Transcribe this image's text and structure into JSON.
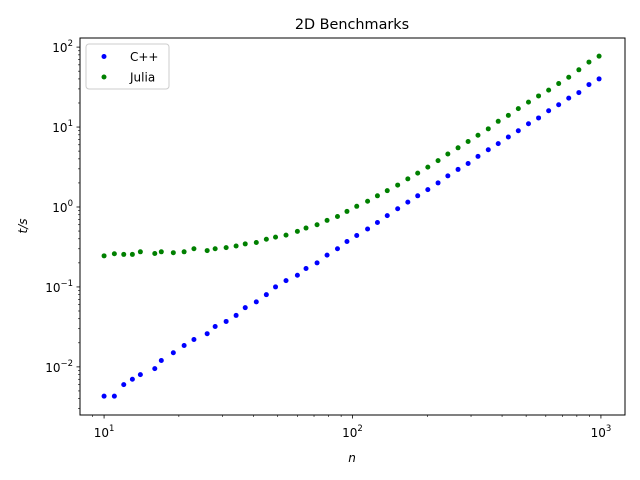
{
  "chart_data": {
    "type": "scatter",
    "title": "2D Benchmarks",
    "xlabel": "n",
    "ylabel": "t/s",
    "xscale": "log",
    "yscale": "log",
    "xlim": [
      8,
      1250
    ],
    "ylim": [
      0.0025,
      130
    ],
    "grid": false,
    "legend_position": "upper-left",
    "x_ticks": [
      {
        "base": "10",
        "exp": "1",
        "value": 10
      },
      {
        "base": "10",
        "exp": "2",
        "value": 100
      },
      {
        "base": "10",
        "exp": "3",
        "value": 1000
      }
    ],
    "y_ticks": [
      {
        "base": "10",
        "exp": "−2",
        "value": 0.01
      },
      {
        "base": "10",
        "exp": "−1",
        "value": 0.1
      },
      {
        "base": "10",
        "exp": "0",
        "value": 1
      },
      {
        "base": "10",
        "exp": "1",
        "value": 10
      },
      {
        "base": "10",
        "exp": "2",
        "value": 100
      }
    ],
    "series": [
      {
        "name": "C++",
        "color": "#0000ff",
        "points": [
          [
            10,
            0.0043
          ],
          [
            11,
            0.0043
          ],
          [
            12,
            0.006
          ],
          [
            13,
            0.007
          ],
          [
            14,
            0.008
          ],
          [
            16,
            0.0095
          ],
          [
            17,
            0.012
          ],
          [
            19,
            0.015
          ],
          [
            21,
            0.0185
          ],
          [
            23,
            0.022
          ],
          [
            26,
            0.026
          ],
          [
            28,
            0.032
          ],
          [
            31,
            0.037
          ],
          [
            34,
            0.044
          ],
          [
            37,
            0.055
          ],
          [
            41,
            0.065
          ],
          [
            45,
            0.08
          ],
          [
            49,
            0.1
          ],
          [
            54,
            0.12
          ],
          [
            60,
            0.14
          ],
          [
            65,
            0.17
          ],
          [
            72,
            0.2
          ],
          [
            79,
            0.25
          ],
          [
            87,
            0.3
          ],
          [
            95,
            0.37
          ],
          [
            104,
            0.44
          ],
          [
            115,
            0.53
          ],
          [
            126,
            0.64
          ],
          [
            138,
            0.78
          ],
          [
            152,
            0.95
          ],
          [
            167,
            1.15
          ],
          [
            183,
            1.38
          ],
          [
            201,
            1.65
          ],
          [
            221,
            2.0
          ],
          [
            242,
            2.45
          ],
          [
            266,
            2.95
          ],
          [
            292,
            3.5
          ],
          [
            320,
            4.3
          ],
          [
            352,
            5.2
          ],
          [
            386,
            6.2
          ],
          [
            424,
            7.5
          ],
          [
            465,
            9.0
          ],
          [
            511,
            11.0
          ],
          [
            561,
            13.0
          ],
          [
            616,
            16.0
          ],
          [
            676,
            19.0
          ],
          [
            742,
            23.0
          ],
          [
            815,
            27.0
          ],
          [
            895,
            34.0
          ],
          [
            983,
            40.0
          ]
        ]
      },
      {
        "name": "Julia",
        "color": "#008000",
        "points": [
          [
            10,
            0.245
          ],
          [
            11,
            0.26
          ],
          [
            12,
            0.255
          ],
          [
            13,
            0.255
          ],
          [
            14,
            0.275
          ],
          [
            16,
            0.262
          ],
          [
            17,
            0.275
          ],
          [
            19,
            0.268
          ],
          [
            21,
            0.275
          ],
          [
            23,
            0.3
          ],
          [
            26,
            0.285
          ],
          [
            28,
            0.3
          ],
          [
            31,
            0.31
          ],
          [
            34,
            0.325
          ],
          [
            37,
            0.345
          ],
          [
            41,
            0.36
          ],
          [
            45,
            0.395
          ],
          [
            49,
            0.42
          ],
          [
            54,
            0.445
          ],
          [
            60,
            0.495
          ],
          [
            65,
            0.545
          ],
          [
            72,
            0.6
          ],
          [
            79,
            0.68
          ],
          [
            87,
            0.76
          ],
          [
            95,
            0.88
          ],
          [
            104,
            1.02
          ],
          [
            115,
            1.18
          ],
          [
            126,
            1.38
          ],
          [
            138,
            1.6
          ],
          [
            152,
            1.88
          ],
          [
            167,
            2.25
          ],
          [
            183,
            2.65
          ],
          [
            201,
            3.15
          ],
          [
            221,
            3.8
          ],
          [
            242,
            4.6
          ],
          [
            266,
            5.5
          ],
          [
            292,
            6.6
          ],
          [
            320,
            7.9
          ],
          [
            352,
            9.5
          ],
          [
            386,
            11.8
          ],
          [
            424,
            14.0
          ],
          [
            465,
            17.0
          ],
          [
            511,
            20.5
          ],
          [
            561,
            24.5
          ],
          [
            616,
            29.0
          ],
          [
            676,
            35.0
          ],
          [
            742,
            42.0
          ],
          [
            815,
            52.0
          ],
          [
            895,
            65.0
          ],
          [
            983,
            77.0
          ]
        ]
      }
    ]
  }
}
